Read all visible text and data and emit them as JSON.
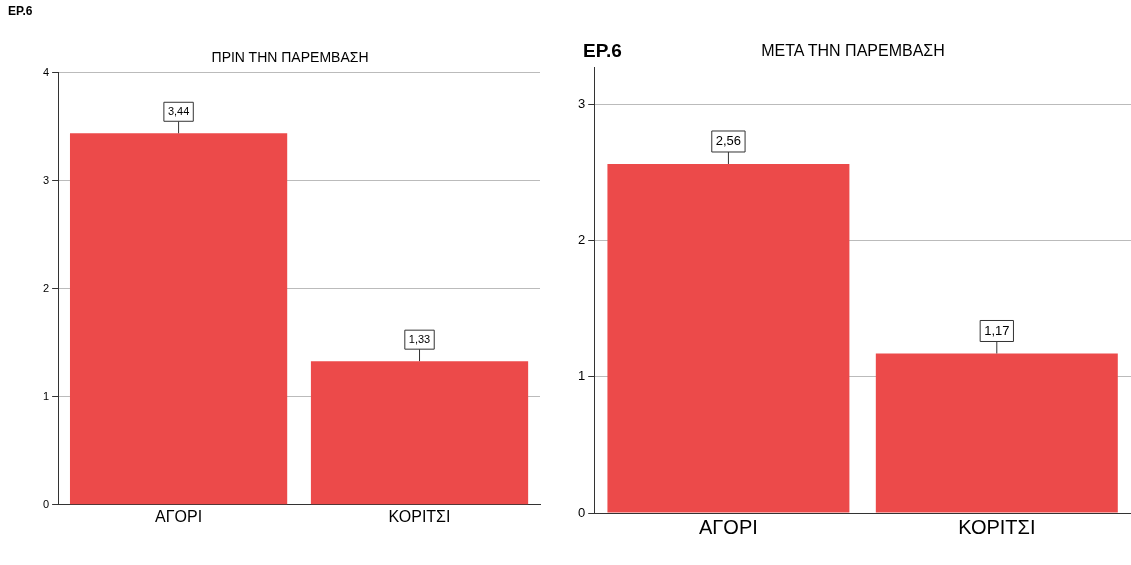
{
  "chart_data": [
    {
      "type": "bar",
      "title": "ΠΡΙΝ ΤΗΝ ΠΑΡΕΜΒΑΣΗ",
      "ylabel": "EP.6",
      "categories": [
        "ΑΓΟΡΙ",
        "ΚΟΡΙΤΣΙ"
      ],
      "values": [
        3.44,
        1.33
      ],
      "value_labels": [
        "3,44",
        "1,33"
      ],
      "color": "#ec4a4a",
      "ylim": [
        0,
        4
      ],
      "yticks": [
        0,
        1,
        2,
        3,
        4
      ],
      "grid": "y",
      "legend": false
    },
    {
      "type": "bar",
      "title": "ΜΕΤΑ ΤΗΝ ΠΑΡΕΜΒΑΣΗ",
      "ylabel": "EP.6",
      "categories": [
        "ΑΓΟΡΙ",
        "ΚΟΡΙΤΣΙ"
      ],
      "values": [
        2.56,
        1.17
      ],
      "value_labels": [
        "2,56",
        "1,17"
      ],
      "color": "#ec4a4a",
      "ylim": [
        0,
        3.27
      ],
      "yticks": [
        0,
        1,
        2,
        3
      ],
      "grid": "y",
      "legend": false
    }
  ]
}
